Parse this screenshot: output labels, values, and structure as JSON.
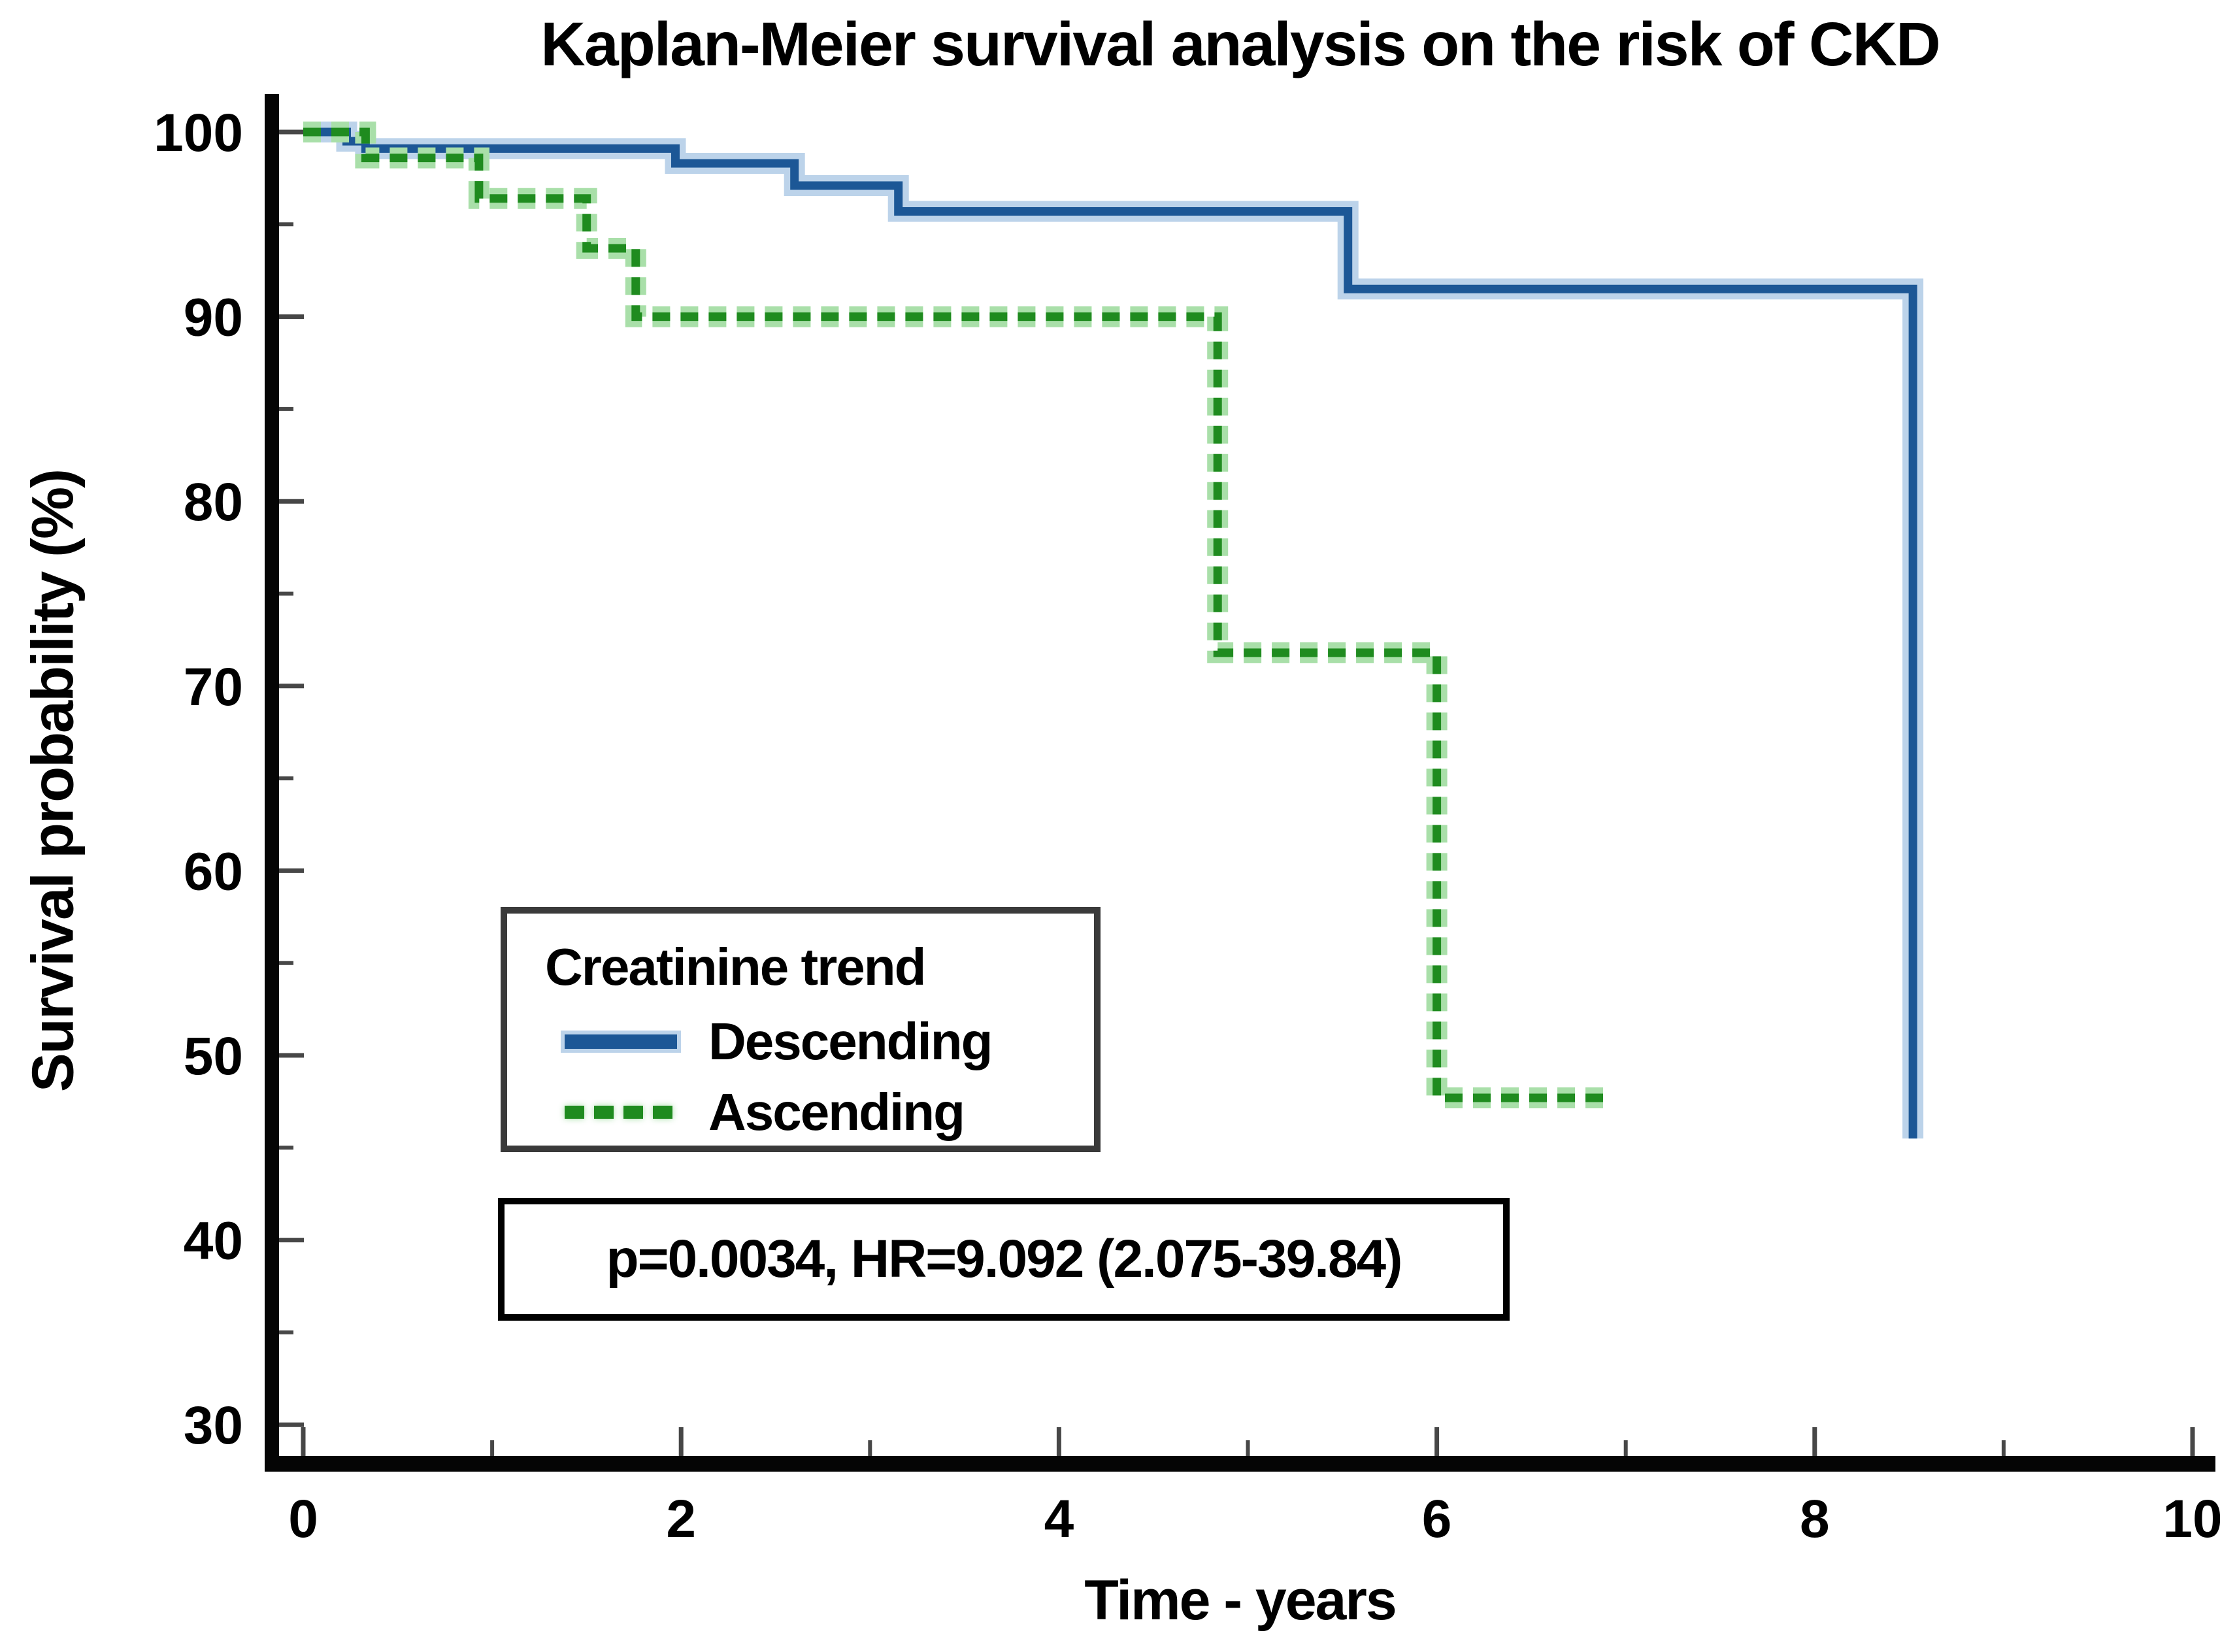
{
  "chart_data": {
    "type": "line",
    "subtype": "kaplan-meier-step",
    "title": "Kaplan-Meier survival analysis on the risk of CKD",
    "xlabel": "Time - years",
    "ylabel": "Survival probability (%)",
    "xlim": [
      0,
      10
    ],
    "ylim": [
      30,
      100
    ],
    "grid": false,
    "x_major_ticks": [
      0,
      2,
      4,
      6,
      8,
      10
    ],
    "x_minor_ticks": [
      1,
      3,
      5,
      7,
      9
    ],
    "y_major_ticks": [
      100,
      90,
      80,
      70,
      60,
      50,
      40,
      30
    ],
    "y_minor_ticks": [
      95,
      85,
      75,
      65,
      55,
      45,
      35
    ],
    "legend_position": "lower-left",
    "series": [
      {
        "name": "Descending",
        "style": "solid",
        "color": "#1C5796",
        "halo": "#BCD3EA",
        "start": [
          0,
          100
        ],
        "changes": [
          [
            0.23,
            99.5
          ],
          [
            0.33,
            99.1
          ],
          [
            1.97,
            98.3
          ],
          [
            2.6,
            97.1
          ],
          [
            3.15,
            95.7
          ],
          [
            5.53,
            91.5
          ],
          [
            8.52,
            45.5
          ]
        ],
        "end": 8.52
      },
      {
        "name": "Ascending",
        "style": "dashed",
        "color": "#1F8B1F",
        "halo": "#A9DFA9",
        "start": [
          0,
          100
        ],
        "changes": [
          [
            0.33,
            98.6
          ],
          [
            0.93,
            96.4
          ],
          [
            1.5,
            93.7
          ],
          [
            1.76,
            90.0
          ],
          [
            4.84,
            71.8
          ],
          [
            6.0,
            47.7
          ]
        ],
        "end": 6.9
      }
    ]
  },
  "legend": {
    "title": "Creatinine trend",
    "items": [
      {
        "label": "Descending",
        "style": "solid",
        "color": "#1C5796"
      },
      {
        "label": "Ascending",
        "style": "dashed",
        "color": "#1F8B1F"
      }
    ]
  },
  "annotation": {
    "text": "p=0.0034, HR=9.092 (2.075-39.84)",
    "p_value": "0.0034",
    "hazard_ratio": "9.092",
    "ci": "2.075-39.84"
  },
  "colors": {
    "axis": "#050505",
    "tick": "#474747",
    "descending": "#1C5796",
    "ascending": "#1F8B1F"
  }
}
